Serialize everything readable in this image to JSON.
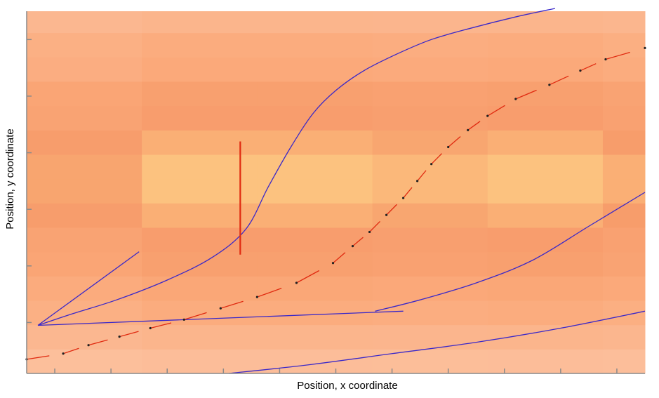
{
  "chart_data": {
    "type": "line",
    "title": "",
    "xlabel": "Position, x coordinate",
    "ylabel": "Position, y coordinate",
    "xlim": [
      0,
      11
    ],
    "ylim": [
      0,
      6.4
    ],
    "x_ticks": [
      0.5,
      1.5,
      2.5,
      3.5,
      4.5,
      5.5,
      6.5,
      7.5,
      8.5,
      9.5,
      10.5
    ],
    "y_ticks": [
      0.9,
      1.9,
      2.9,
      3.9,
      4.9,
      5.9
    ],
    "grid": false,
    "legend": "none",
    "colors": {
      "background_light": "#fcc6a6",
      "background_mid": "#fba97a",
      "background_dark": "#f79b6a",
      "background_peak": "#fcc27f",
      "curve": "#3a28c8",
      "trajectory": "#e02a10",
      "axes": "#8a8a8a"
    },
    "heatmap": {
      "x_edges": [
        0,
        2.05,
        4.1,
        6.15,
        8.2,
        10.25,
        11
      ],
      "row_height": 0.43,
      "row_levels": [
        0.15,
        0.3,
        0.45,
        0.55,
        0.7,
        0.75,
        0.9,
        1.0,
        1.0,
        0.9,
        0.75,
        0.7,
        0.5,
        0.45,
        0.3
      ],
      "col_levels": [
        0.85,
        1.0,
        1.0,
        0.95,
        1.0,
        0.9,
        0.9
      ]
    },
    "series": [
      {
        "kind": "curve",
        "x": [
          0.2,
          0.8,
          1.6,
          2.5,
          3.3,
          3.9,
          4.3,
          4.7,
          5.1,
          5.5,
          6.0,
          6.6,
          7.2,
          7.9,
          8.7,
          9.4
        ],
        "y": [
          0.85,
          1.05,
          1.3,
          1.65,
          2.05,
          2.55,
          3.3,
          4.0,
          4.6,
          5.0,
          5.35,
          5.65,
          5.9,
          6.1,
          6.3,
          6.45
        ]
      },
      {
        "kind": "curve",
        "x": [
          0.2,
          2.0
        ],
        "y": [
          0.85,
          2.15
        ]
      },
      {
        "kind": "curve",
        "x": [
          0.2,
          6.7
        ],
        "y": [
          0.85,
          1.1
        ]
      },
      {
        "kind": "curve",
        "x": [
          6.2,
          7.0,
          8.0,
          9.0,
          10.0,
          11.0
        ],
        "y": [
          1.1,
          1.3,
          1.6,
          2.0,
          2.6,
          3.2
        ]
      },
      {
        "kind": "curve",
        "x": [
          3.6,
          5.0,
          6.5,
          8.0,
          9.5,
          11.0
        ],
        "y": [
          0.0,
          0.15,
          0.35,
          0.55,
          0.8,
          1.1
        ]
      },
      {
        "kind": "segment",
        "x": [
          3.8,
          3.8
        ],
        "y": [
          4.1,
          2.1
        ]
      },
      {
        "kind": "trajectory",
        "x": [
          0.0,
          0.65,
          1.1,
          1.65,
          2.2,
          2.8,
          3.45,
          4.1,
          4.8,
          5.45,
          5.8,
          6.1,
          6.4,
          6.7,
          6.95,
          7.2,
          7.5,
          7.85,
          8.2,
          8.7,
          9.3,
          9.85,
          10.3,
          11.0
        ],
        "y": [
          0.25,
          0.35,
          0.5,
          0.65,
          0.8,
          0.95,
          1.15,
          1.35,
          1.6,
          1.95,
          2.25,
          2.5,
          2.8,
          3.1,
          3.4,
          3.7,
          4.0,
          4.3,
          4.55,
          4.85,
          5.1,
          5.35,
          5.55,
          5.75
        ]
      }
    ]
  }
}
